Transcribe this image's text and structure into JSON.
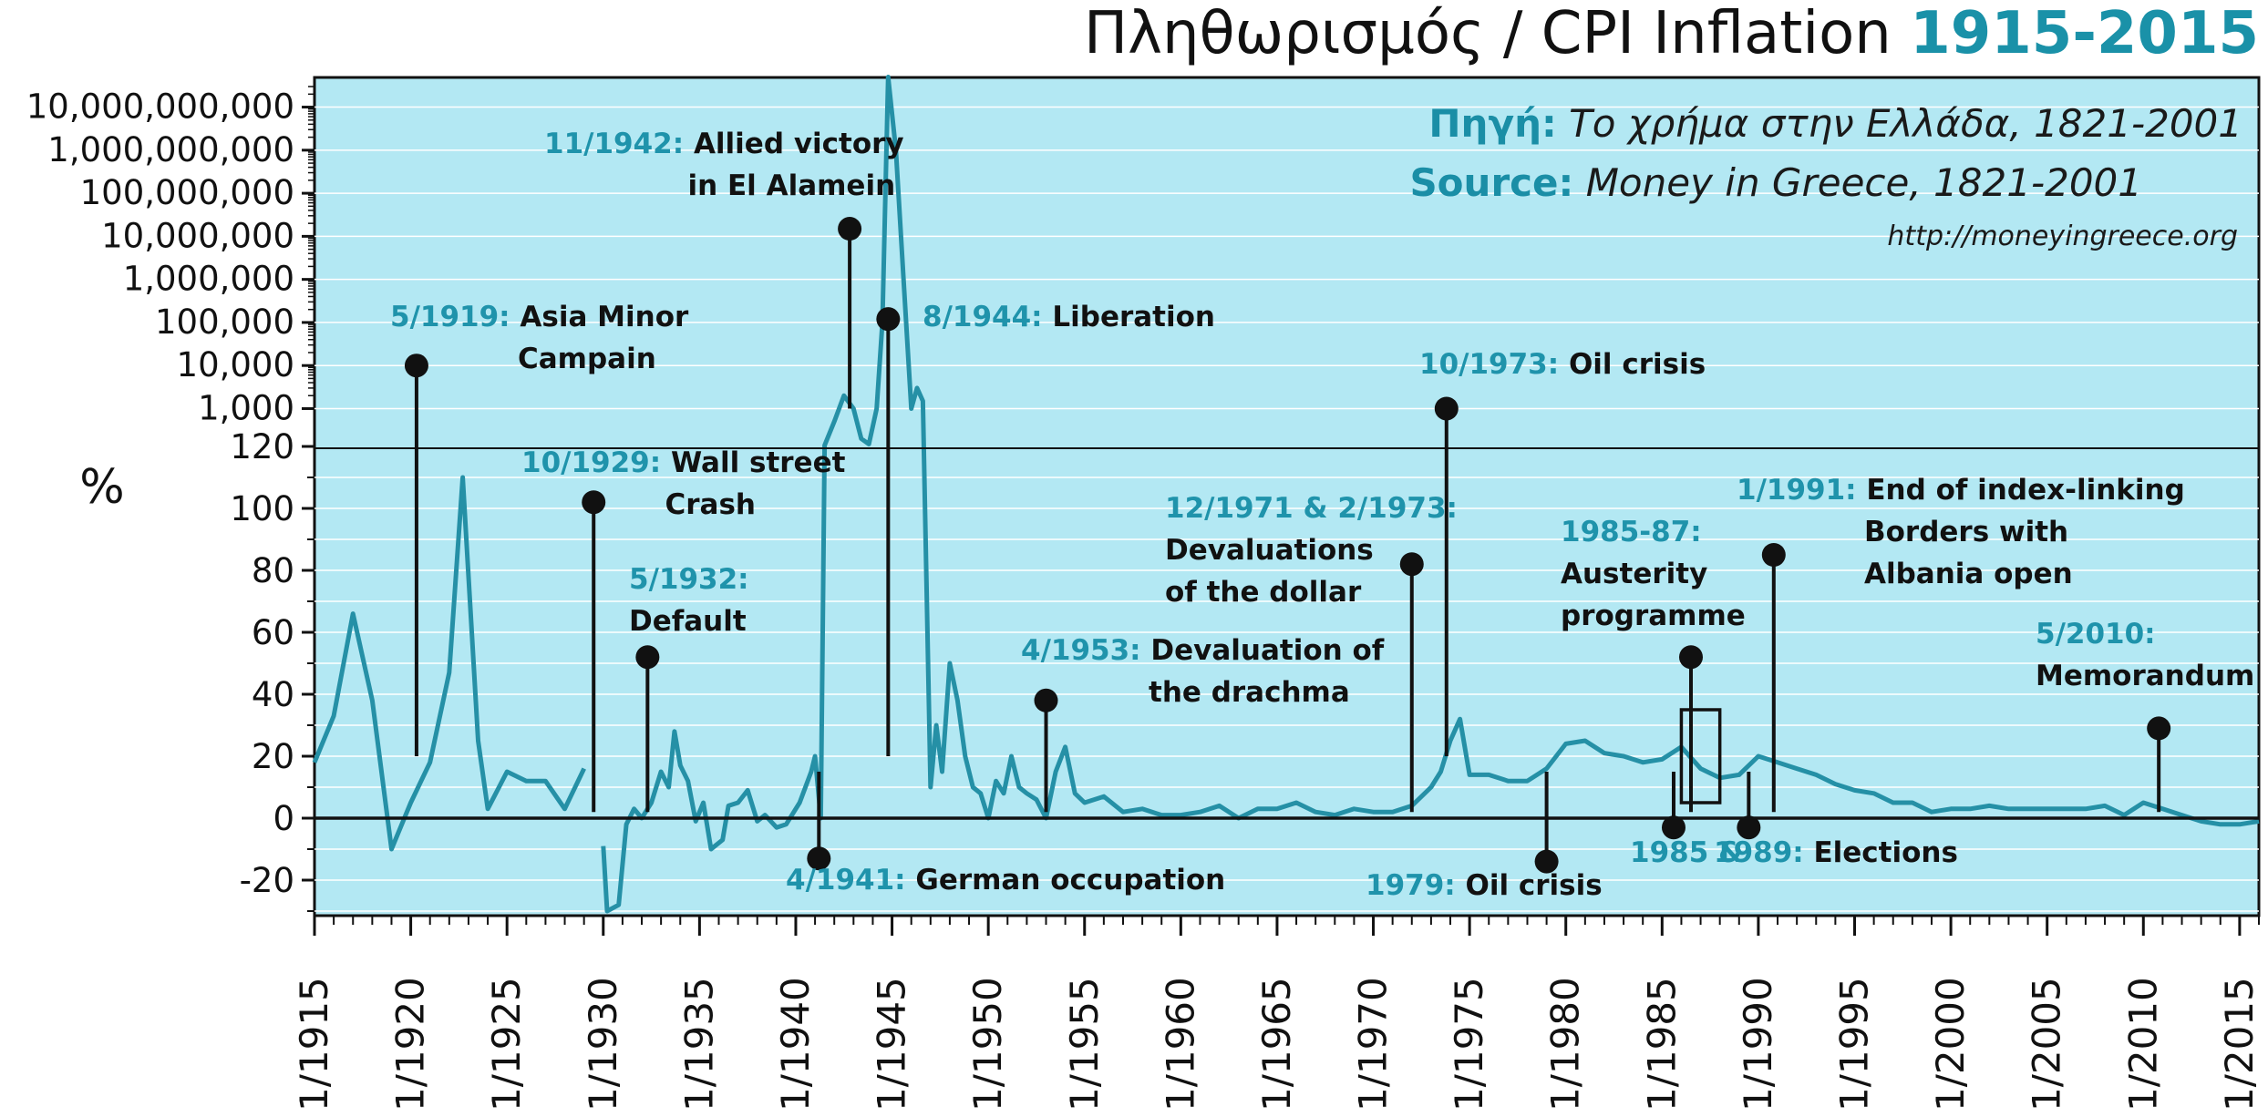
{
  "title": {
    "main": "Πληθωρισμός / CPI Inflation ",
    "accent": "1915-2015"
  },
  "source": {
    "greek_key": "Πηγή:",
    "greek_value": " Το χρήμα στην Ελλάδα, 1821-2001",
    "english_key": "Source:",
    "english_value": " Money in Greece, 1821-2001",
    "url": "http://moneyingreece.org"
  },
  "colors": {
    "plot_background": "#b3e8f3",
    "gridline": "#ffffff",
    "series_line": "#2590a6",
    "accent_text": "#1f93ab",
    "axis": "#111111"
  },
  "chart_data": {
    "type": "line",
    "title": "Πληθωρισμός / CPI Inflation 1915-2015",
    "xlabel": "",
    "ylabel": "%",
    "xlim": [
      1915.0,
      2016.0
    ],
    "grid": true,
    "y_axis": {
      "linear_range": [
        -30,
        120
      ],
      "linear_ticks": [
        120,
        100,
        80,
        60,
        40,
        20,
        0,
        -20
      ],
      "linear_tick_labels": [
        "120",
        "100",
        "80",
        "60",
        "40",
        "20",
        "0",
        "-20"
      ],
      "log_range": [
        120,
        30000000000
      ],
      "log_ticks": [
        1000,
        10000,
        100000,
        1000000,
        10000000,
        100000000,
        1000000000,
        10000000000
      ],
      "log_tick_labels": [
        "1,000",
        "10,000",
        "100,000",
        "1,000,000",
        "10,000,000",
        "100,000,000",
        "1,000,000,000",
        "10,000,000,000"
      ]
    },
    "x_tick_labels": [
      "1/1915",
      "1/1920",
      "1/1925",
      "1/1930",
      "1/1935",
      "1/1940",
      "1/1945",
      "1/1950",
      "1/1955",
      "1/1960",
      "1/1965",
      "1/1970",
      "1/1975",
      "1/1980",
      "1/1985",
      "1/1990",
      "1/1995",
      "1/2000",
      "1/2005",
      "1/2010",
      "1/2015"
    ],
    "x_ticks": [
      1915,
      1920,
      1925,
      1930,
      1935,
      1940,
      1945,
      1950,
      1955,
      1960,
      1965,
      1970,
      1975,
      1980,
      1985,
      1990,
      1995,
      2000,
      2005,
      2010,
      2015
    ],
    "series": [
      {
        "name": "CPI inflation",
        "segments": [
          [
            [
              1915.0,
              18
            ],
            [
              1916.0,
              33
            ],
            [
              1917.0,
              66
            ],
            [
              1918.0,
              38
            ],
            [
              1919.0,
              -10
            ],
            [
              1920.0,
              5
            ],
            [
              1921.0,
              18
            ],
            [
              1922.0,
              47
            ],
            [
              1922.7,
              110
            ],
            [
              1923.5,
              25
            ],
            [
              1924.0,
              3
            ],
            [
              1925.0,
              15
            ],
            [
              1926.0,
              12
            ],
            [
              1927.0,
              12
            ],
            [
              1928.0,
              3
            ],
            [
              1929.0,
              16
            ]
          ],
          [
            [
              1930.0,
              -9
            ],
            [
              1930.2,
              -30
            ],
            [
              1930.8,
              -28
            ],
            [
              1931.2,
              -2
            ],
            [
              1931.6,
              3
            ],
            [
              1932.0,
              0
            ],
            [
              1932.5,
              5
            ],
            [
              1933.0,
              15
            ],
            [
              1933.4,
              10
            ],
            [
              1933.7,
              28
            ],
            [
              1934.0,
              17
            ],
            [
              1934.4,
              12
            ],
            [
              1934.8,
              -1
            ],
            [
              1935.2,
              5
            ],
            [
              1935.6,
              -10
            ],
            [
              1936.2,
              -7
            ],
            [
              1936.5,
              4
            ],
            [
              1937.0,
              5
            ],
            [
              1937.5,
              9
            ],
            [
              1938.0,
              -1
            ],
            [
              1938.4,
              1
            ],
            [
              1939.0,
              -3
            ],
            [
              1939.5,
              -2
            ],
            [
              1940.2,
              5
            ],
            [
              1940.8,
              15
            ],
            [
              1941.0,
              20
            ],
            [
              1941.3,
              0
            ],
            [
              1941.5,
              140
            ],
            [
              1942.0,
              500
            ],
            [
              1942.5,
              2000
            ],
            [
              1943.0,
              1000
            ],
            [
              1943.4,
              200
            ],
            [
              1943.8,
              150
            ],
            [
              1944.2,
              1000
            ],
            [
              1944.5,
              100000
            ],
            [
              1944.8,
              50000000000
            ],
            [
              1945.2,
              1000000000
            ],
            [
              1945.6,
              1000000
            ],
            [
              1946.0,
              1000
            ],
            [
              1946.3,
              3000
            ],
            [
              1946.6,
              1500
            ],
            [
              1947.0,
              10
            ],
            [
              1947.3,
              30
            ],
            [
              1947.6,
              15
            ],
            [
              1948.0,
              50
            ],
            [
              1948.4,
              38
            ],
            [
              1948.8,
              20
            ],
            [
              1949.2,
              10
            ],
            [
              1949.6,
              8
            ],
            [
              1950.0,
              0
            ],
            [
              1950.4,
              12
            ],
            [
              1950.8,
              8
            ],
            [
              1951.2,
              20
            ],
            [
              1951.6,
              10
            ],
            [
              1952.0,
              8
            ],
            [
              1952.5,
              6
            ],
            [
              1953.0,
              0
            ],
            [
              1953.5,
              15
            ],
            [
              1954.0,
              23
            ],
            [
              1954.5,
              8
            ],
            [
              1955.0,
              5
            ],
            [
              1956.0,
              7
            ],
            [
              1957.0,
              2
            ],
            [
              1958.0,
              3
            ],
            [
              1959.0,
              1
            ],
            [
              1960.0,
              1
            ],
            [
              1961.0,
              2
            ],
            [
              1962.0,
              4
            ],
            [
              1963.0,
              0
            ],
            [
              1964.0,
              3
            ],
            [
              1965.0,
              3
            ],
            [
              1966.0,
              5
            ],
            [
              1967.0,
              2
            ],
            [
              1968.0,
              1
            ],
            [
              1969.0,
              3
            ],
            [
              1970.0,
              2
            ],
            [
              1971.0,
              2
            ],
            [
              1972.0,
              4
            ],
            [
              1973.0,
              10
            ],
            [
              1973.5,
              15
            ],
            [
              1974.0,
              25
            ],
            [
              1974.5,
              32
            ],
            [
              1975.0,
              14
            ],
            [
              1976.0,
              14
            ],
            [
              1977.0,
              12
            ],
            [
              1978.0,
              12
            ],
            [
              1979.0,
              16
            ],
            [
              1980.0,
              24
            ],
            [
              1981.0,
              25
            ],
            [
              1982.0,
              21
            ],
            [
              1983.0,
              20
            ],
            [
              1984.0,
              18
            ],
            [
              1985.0,
              19
            ],
            [
              1986.0,
              23
            ],
            [
              1987.0,
              16
            ],
            [
              1988.0,
              13
            ],
            [
              1989.0,
              14
            ],
            [
              1990.0,
              20
            ],
            [
              1991.0,
              18
            ],
            [
              1992.0,
              16
            ],
            [
              1993.0,
              14
            ],
            [
              1994.0,
              11
            ],
            [
              1995.0,
              9
            ],
            [
              1996.0,
              8
            ],
            [
              1997.0,
              5
            ],
            [
              1998.0,
              5
            ],
            [
              1999.0,
              2
            ],
            [
              2000.0,
              3
            ],
            [
              2001.0,
              3
            ],
            [
              2002.0,
              4
            ],
            [
              2003.0,
              3
            ],
            [
              2004.0,
              3
            ],
            [
              2005.0,
              3
            ],
            [
              2006.0,
              3
            ],
            [
              2007.0,
              3
            ],
            [
              2008.0,
              4
            ],
            [
              2009.0,
              1
            ],
            [
              2010.0,
              5
            ],
            [
              2011.0,
              3
            ],
            [
              2012.0,
              1
            ],
            [
              2013.0,
              -1
            ],
            [
              2014.0,
              -2
            ],
            [
              2015.0,
              -2
            ],
            [
              2016.0,
              -1
            ]
          ]
        ]
      }
    ],
    "annotations": [
      {
        "date": "5/1919:",
        "lines": [
          "Asia Minor",
          "Campain"
        ],
        "x": 1920.3,
        "y": 10000
      },
      {
        "date": "10/1929:",
        "lines": [
          "Wall street",
          "Crash"
        ],
        "x": 1929.5,
        "y": 102
      },
      {
        "date": "5/1932:",
        "lines": [
          "Default"
        ],
        "x": 1932.3,
        "y": 52
      },
      {
        "date": "4/1941:",
        "lines": [
          "German occupation"
        ],
        "x": 1941.2,
        "y": -13
      },
      {
        "date": "11/1942:",
        "lines": [
          "Allied victory",
          "in El Alamein"
        ],
        "x": 1942.8,
        "y": 15000000
      },
      {
        "date": "8/1944:",
        "lines": [
          "Liberation"
        ],
        "x": 1944.8,
        "y": 120000
      },
      {
        "date": "4/1953:",
        "lines": [
          "Devaluation of",
          "the drachma"
        ],
        "x": 1953.0,
        "y": 38
      },
      {
        "date": "12/1971 & 2/1973:",
        "lines": [
          "Devaluations",
          "of the dollar"
        ],
        "x": 1972.0,
        "y": 82
      },
      {
        "date": "10/1973:",
        "lines": [
          "Oil crisis"
        ],
        "x": 1973.8,
        "y": 1000
      },
      {
        "date": "1979:",
        "lines": [
          "Oil crisis"
        ],
        "x": 1979.0,
        "y": -14
      },
      {
        "date": "1985-87:",
        "lines": [
          "Austerity",
          "programme"
        ],
        "x": 1986.5,
        "y": 52
      },
      {
        "date": "1985 &",
        "lines": [],
        "x": 1985.6,
        "y": -3
      },
      {
        "date": "1989:",
        "lines": [
          "Elections"
        ],
        "x": 1989.5,
        "y": -3
      },
      {
        "date": "1/1991:",
        "lines": [
          "End of index-linking",
          "Borders with",
          "Albania open"
        ],
        "x": 1990.8,
        "y": 85
      },
      {
        "date": "5/2010:",
        "lines": [
          "Memorandum"
        ],
        "x": 2010.8,
        "y": 29
      }
    ]
  }
}
